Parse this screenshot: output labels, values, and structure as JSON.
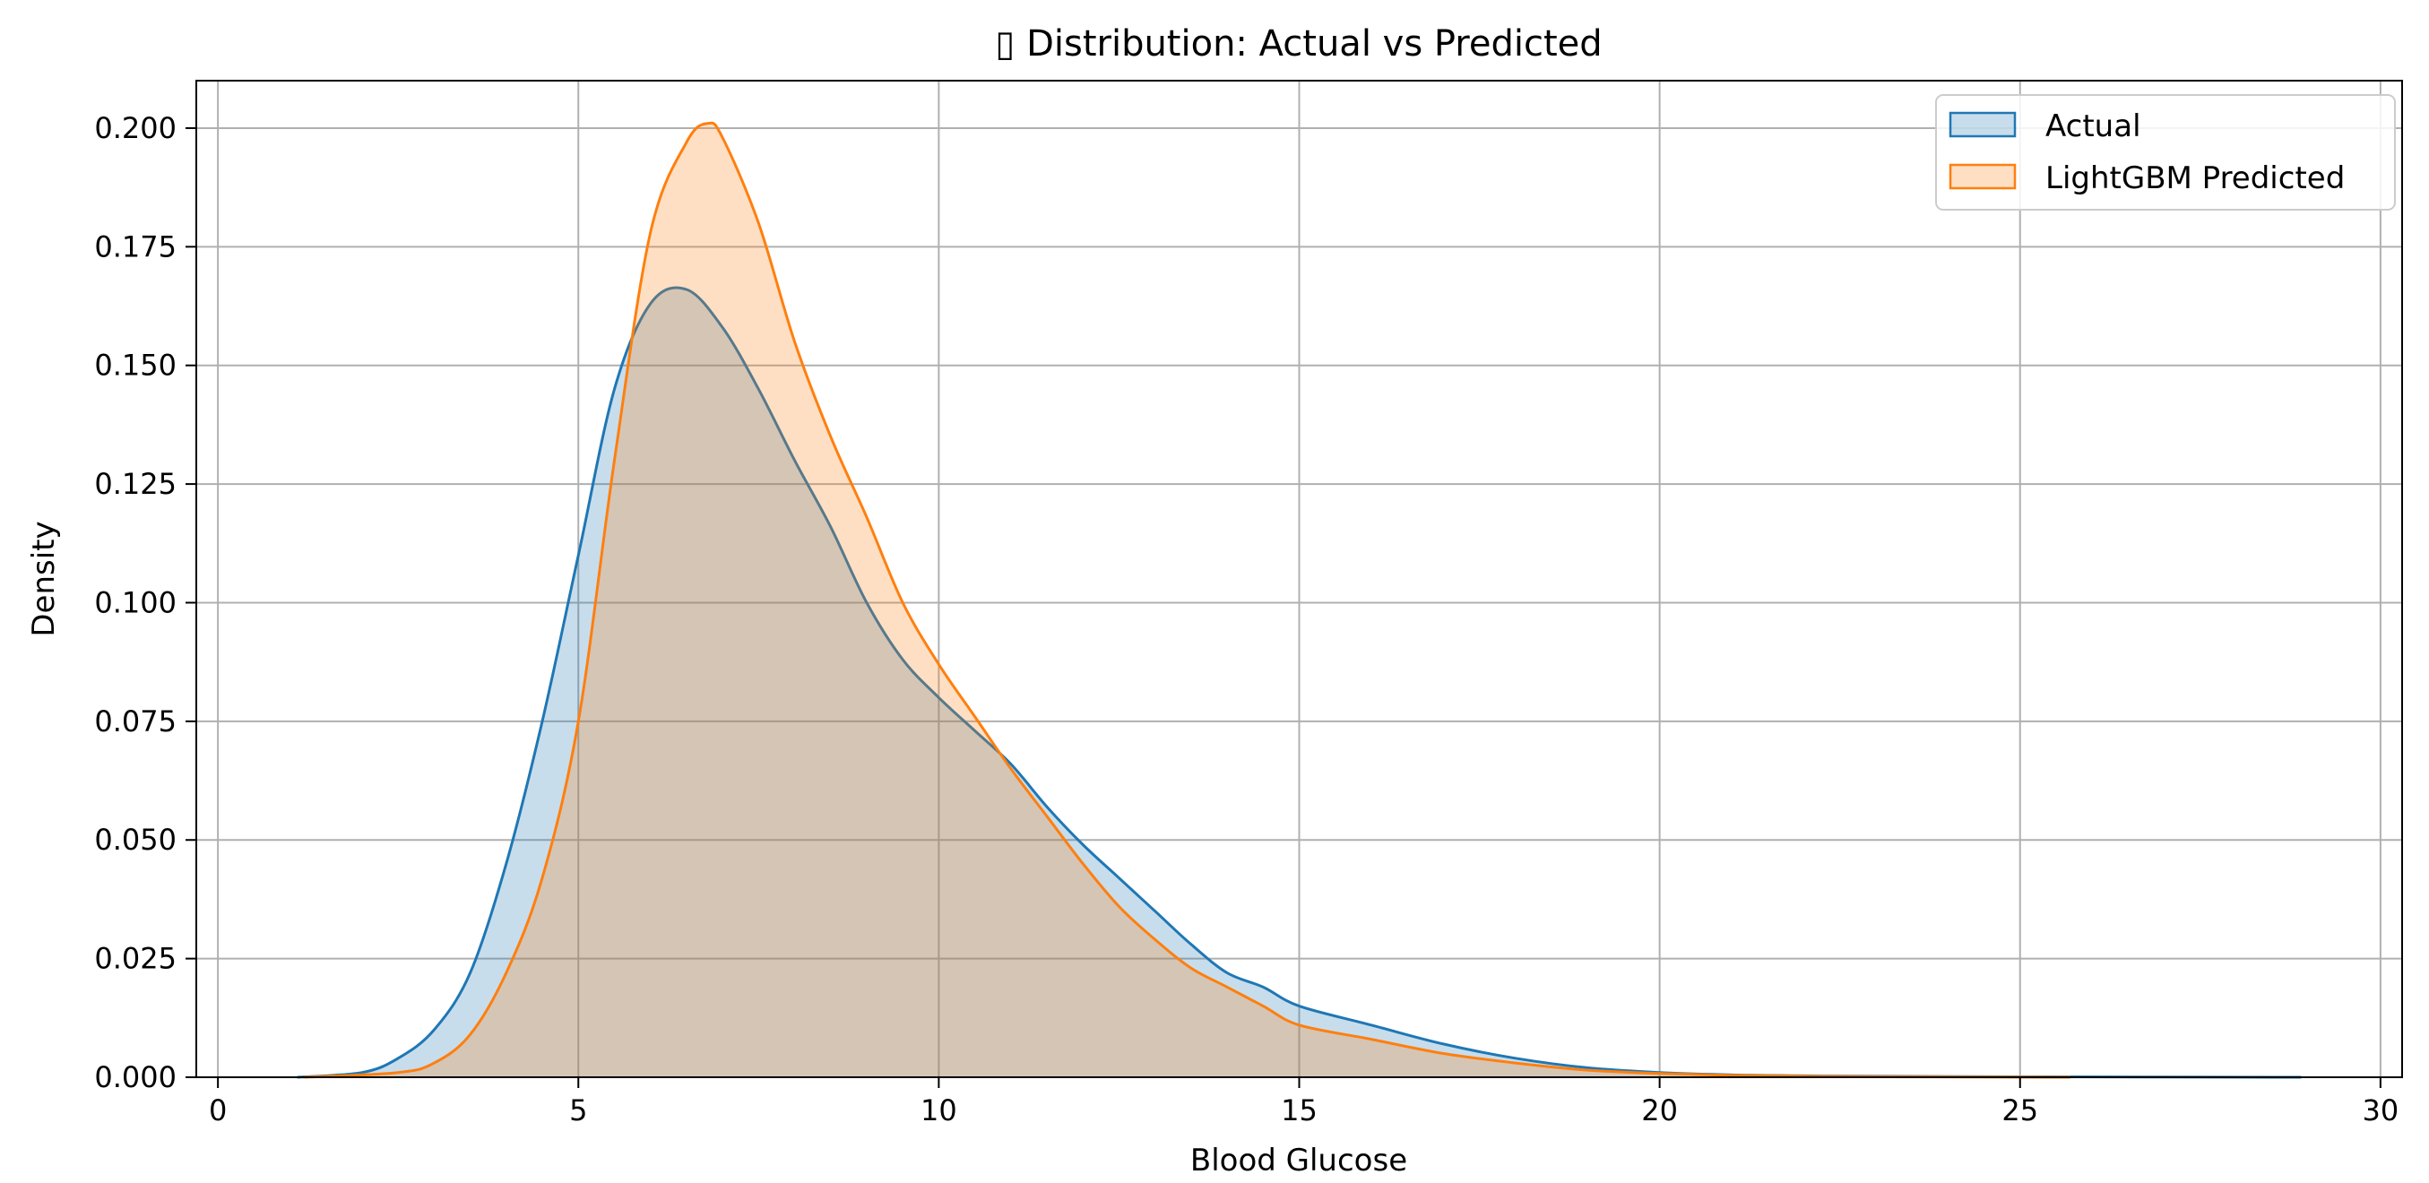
{
  "chart_data": {
    "type": "area",
    "title": "▯ Distribution: Actual vs Predicted",
    "xlabel": "Blood Glucose",
    "ylabel": "Density",
    "xlim": [
      -0.3,
      30.3
    ],
    "ylim": [
      0,
      0.21
    ],
    "xticks": [
      0,
      5,
      10,
      15,
      20,
      25,
      30
    ],
    "xtick_labels": [
      "0",
      "5",
      "10",
      "15",
      "20",
      "25",
      "30"
    ],
    "yticks": [
      0,
      0.025,
      0.05,
      0.075,
      0.1,
      0.125,
      0.15,
      0.175,
      0.2
    ],
    "ytick_labels": [
      "0.000",
      "0.025",
      "0.050",
      "0.075",
      "0.100",
      "0.125",
      "0.150",
      "0.175",
      "0.200"
    ],
    "grid": true,
    "legend_position": "top-right",
    "series": [
      {
        "name": "Actual",
        "color": "#1f77b4",
        "fill": "#1f77b4",
        "fill_opacity": 0.25,
        "x": [
          1.1,
          2.0,
          2.5,
          3.0,
          3.5,
          4.0,
          4.5,
          5.0,
          5.5,
          6.0,
          6.5,
          7.0,
          7.5,
          8.0,
          8.5,
          9.0,
          9.5,
          10.0,
          10.5,
          11.0,
          11.5,
          12.0,
          12.5,
          13.0,
          13.5,
          14.0,
          14.5,
          15.0,
          16.0,
          17.0,
          18.0,
          19.0,
          20.0,
          21.0,
          22.0,
          23.0,
          25.0,
          28.9
        ],
        "y": [
          0.0,
          0.001,
          0.004,
          0.01,
          0.022,
          0.045,
          0.075,
          0.11,
          0.145,
          0.163,
          0.166,
          0.158,
          0.145,
          0.13,
          0.116,
          0.1,
          0.088,
          0.08,
          0.073,
          0.066,
          0.057,
          0.049,
          0.042,
          0.035,
          0.028,
          0.022,
          0.019,
          0.015,
          0.011,
          0.007,
          0.004,
          0.002,
          0.001,
          0.0005,
          0.0003,
          0.0002,
          0.0001,
          0.0
        ]
      },
      {
        "name": "LightGBM Predicted",
        "color": "#ff7f0e",
        "fill": "#ff7f0e",
        "fill_opacity": 0.25,
        "x": [
          1.2,
          2.5,
          3.0,
          3.5,
          4.0,
          4.5,
          5.0,
          5.5,
          6.0,
          6.5,
          6.8,
          7.0,
          7.5,
          8.0,
          8.5,
          9.0,
          9.5,
          10.0,
          10.5,
          11.0,
          11.5,
          12.0,
          12.5,
          13.0,
          13.5,
          14.0,
          14.5,
          15.0,
          16.0,
          17.0,
          18.0,
          19.0,
          20.0,
          21.0,
          22.0,
          23.0,
          25.7
        ],
        "y": [
          0.0,
          0.001,
          0.003,
          0.009,
          0.022,
          0.042,
          0.075,
          0.13,
          0.178,
          0.197,
          0.201,
          0.198,
          0.18,
          0.155,
          0.135,
          0.118,
          0.1,
          0.087,
          0.076,
          0.065,
          0.055,
          0.045,
          0.036,
          0.029,
          0.023,
          0.019,
          0.015,
          0.011,
          0.008,
          0.005,
          0.003,
          0.0015,
          0.0008,
          0.0004,
          0.0002,
          0.0001,
          0.0
        ]
      }
    ]
  }
}
